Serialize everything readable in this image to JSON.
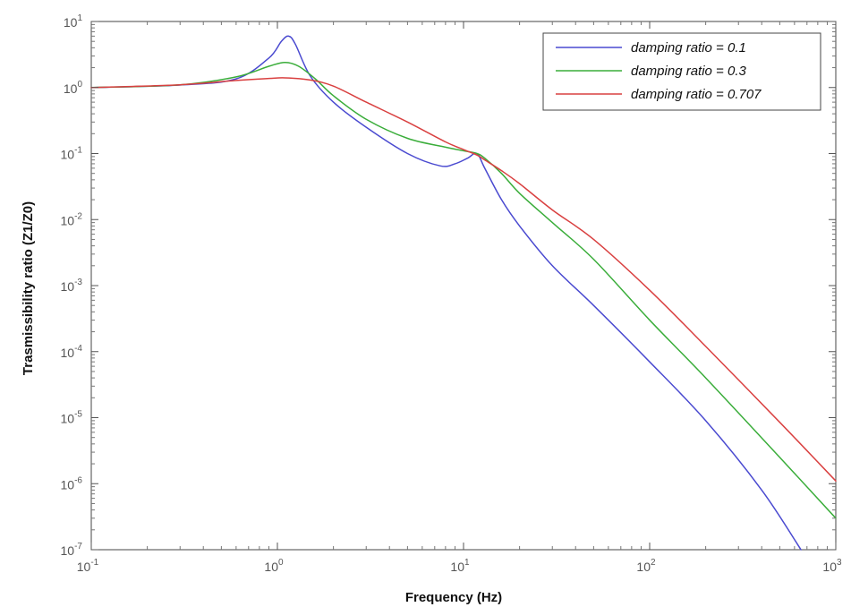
{
  "chart_data": {
    "type": "line",
    "title": "",
    "xlabel": "Frequency  (Hz)",
    "ylabel": "Trasmissibility ratio  (Z1/Z0)",
    "xscale": "log",
    "yscale": "log",
    "xlim": [
      0.1,
      1000
    ],
    "ylim": [
      1e-07,
      10
    ],
    "grid": false,
    "legend_position": "top-right",
    "x_ticks": [
      {
        "base": "10",
        "exp": "-1"
      },
      {
        "base": "10",
        "exp": "0"
      },
      {
        "base": "10",
        "exp": "1"
      },
      {
        "base": "10",
        "exp": "2"
      },
      {
        "base": "10",
        "exp": "3"
      }
    ],
    "y_ticks": [
      {
        "base": "10",
        "exp": "1"
      },
      {
        "base": "10",
        "exp": "0"
      },
      {
        "base": "10",
        "exp": "-1"
      },
      {
        "base": "10",
        "exp": "-2"
      },
      {
        "base": "10",
        "exp": "-3"
      },
      {
        "base": "10",
        "exp": "-4"
      },
      {
        "base": "10",
        "exp": "-5"
      },
      {
        "base": "10",
        "exp": "-6"
      },
      {
        "base": "10",
        "exp": "-7"
      }
    ],
    "series": [
      {
        "name": "damping ratio = 0.1",
        "color": "#4a4ad0",
        "x": [
          0.1,
          0.3,
          0.6,
          0.9,
          1.05,
          1.15,
          1.25,
          1.5,
          2,
          3,
          5,
          7.5,
          9,
          10.5,
          11.8,
          13,
          16,
          20,
          30,
          50,
          100,
          200,
          400,
          650
        ],
        "y": [
          1.0,
          1.09,
          1.35,
          2.8,
          5.0,
          6.0,
          4.5,
          1.5,
          0.6,
          0.25,
          0.1,
          0.065,
          0.07,
          0.085,
          0.1,
          0.06,
          0.02,
          0.008,
          0.002,
          0.0005,
          7e-05,
          9e-06,
          8e-07,
          1e-07
        ]
      },
      {
        "name": "damping ratio = 0.3",
        "color": "#3aad3a",
        "x": [
          0.1,
          0.3,
          0.6,
          0.9,
          1.1,
          1.3,
          1.6,
          2,
          3,
          5,
          8,
          10,
          11.8,
          13,
          16,
          20,
          30,
          50,
          100,
          200,
          500,
          1000
        ],
        "y": [
          1.0,
          1.1,
          1.45,
          2.1,
          2.4,
          2.1,
          1.35,
          0.75,
          0.33,
          0.17,
          0.125,
          0.11,
          0.1,
          0.085,
          0.05,
          0.025,
          0.009,
          0.0025,
          0.0003,
          4e-05,
          2.5e-06,
          3e-07
        ]
      },
      {
        "name": "damping ratio = 0.707",
        "color": "#d94040",
        "x": [
          0.1,
          0.3,
          0.6,
          0.9,
          1.1,
          1.5,
          2,
          3,
          5,
          8,
          10,
          11.8,
          13,
          16,
          20,
          30,
          50,
          100,
          200,
          500,
          1000
        ],
        "y": [
          1.0,
          1.1,
          1.28,
          1.37,
          1.4,
          1.3,
          1.05,
          0.6,
          0.3,
          0.15,
          0.115,
          0.095,
          0.08,
          0.055,
          0.035,
          0.014,
          0.005,
          0.00085,
          0.00012,
          8.5e-06,
          1.1e-06
        ]
      }
    ]
  }
}
